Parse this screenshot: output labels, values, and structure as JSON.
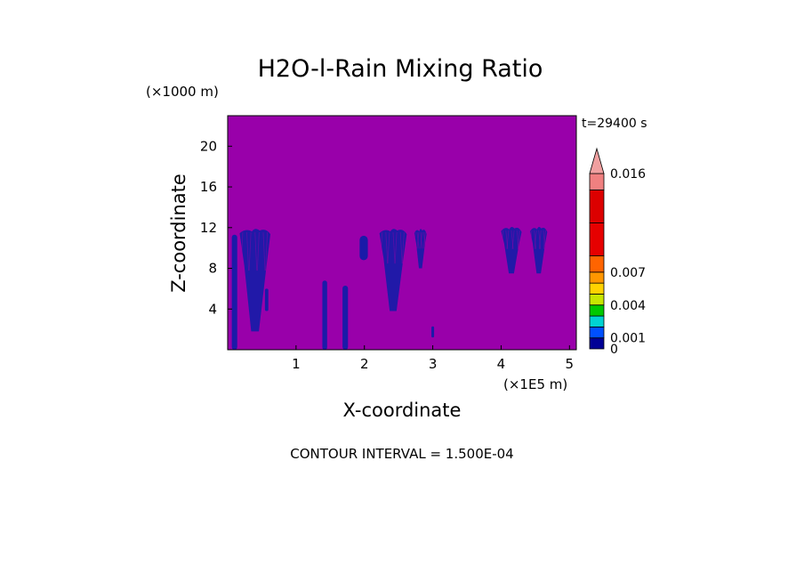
{
  "chart_data": {
    "type": "heatmap",
    "title": "H2O-l-Rain Mixing Ratio",
    "xlabel": "X-coordinate",
    "ylabel": "Z-coordinate",
    "x_units": "(×1E5 m)",
    "y_units": "(×1000 m)",
    "time_label": "t=29400 s",
    "footer": "CONTOUR INTERVAL = 1.500E-04",
    "xlim": [
      0,
      5.1
    ],
    "ylim": [
      0,
      23
    ],
    "x_ticks": [
      1,
      2,
      3,
      4,
      5
    ],
    "y_ticks": [
      4,
      8,
      12,
      16,
      20
    ],
    "background_color": "#9900aa",
    "rain_color": "#1a1aa8",
    "colorbar": {
      "levels": [
        0,
        0.001,
        0.002,
        0.003,
        0.004,
        0.005,
        0.006,
        0.007,
        0.0085,
        0.0115,
        0.0145,
        0.016
      ],
      "colors": [
        "#000096",
        "#0050ff",
        "#00d2d2",
        "#00c800",
        "#c8e600",
        "#ffd200",
        "#ff9600",
        "#ff6400",
        "#e60000",
        "#dc0000",
        "#f08080"
      ],
      "extend_color": "#f0a0a0",
      "tick_labels": [
        {
          "value": 0,
          "label": "0"
        },
        {
          "value": 0.001,
          "label": "0.001"
        },
        {
          "value": 0.004,
          "label": "0.004"
        },
        {
          "value": 0.007,
          "label": "0.007"
        },
        {
          "value": 0.016,
          "label": "0.016"
        }
      ]
    },
    "rain_columns": [
      {
        "x": 0.1,
        "bottom": 0.0,
        "top": 11.3,
        "width": 0.08
      },
      {
        "x": 0.4,
        "bottom": 1.8,
        "top": 11.8,
        "width": 0.45
      },
      {
        "x": 0.57,
        "bottom": 3.8,
        "top": 6.0,
        "width": 0.05
      },
      {
        "x": 1.42,
        "bottom": 0.0,
        "top": 6.8,
        "width": 0.07
      },
      {
        "x": 1.72,
        "bottom": 0.0,
        "top": 6.3,
        "width": 0.08
      },
      {
        "x": 1.99,
        "bottom": 8.8,
        "top": 11.2,
        "width": 0.12
      },
      {
        "x": 2.42,
        "bottom": 3.8,
        "top": 11.8,
        "width": 0.4
      },
      {
        "x": 2.82,
        "bottom": 8.0,
        "top": 11.8,
        "width": 0.18
      },
      {
        "x": 3.0,
        "bottom": 1.2,
        "top": 2.3,
        "width": 0.03
      },
      {
        "x": 4.15,
        "bottom": 7.5,
        "top": 12.0,
        "width": 0.3
      },
      {
        "x": 4.55,
        "bottom": 7.5,
        "top": 12.0,
        "width": 0.25
      }
    ]
  }
}
